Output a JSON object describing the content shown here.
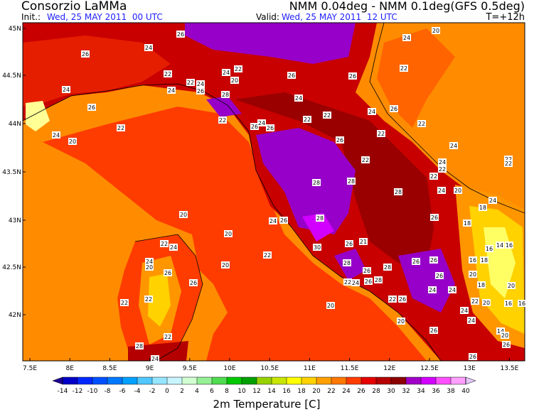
{
  "header": {
    "title": "Consorzio LaMMa",
    "model": "NMM 0.04deg - NMM 0.1deg(GFS 0.5deg)",
    "init_label": "Init.:",
    "init_time": "Wed, 25 MAY 2011  00 UTC",
    "valid_label": "Valid:",
    "valid_time": "Wed, 25 MAY 2011  12 UTC",
    "forecast_step": "T=+12h"
  },
  "map": {
    "lat_labels": [
      "45N",
      "44.5N",
      "44N",
      "43.5N",
      "43N",
      "42.5N",
      "42N"
    ],
    "lon_labels": [
      "7.5E",
      "8E",
      "8.5E",
      "9E",
      "9.5E",
      "10E",
      "10.5E",
      "11E",
      "11.5E",
      "12E",
      "12.5E",
      "13E",
      "13.5E"
    ],
    "values": [
      26,
      24,
      26,
      22,
      24,
      22,
      24,
      24,
      22,
      24,
      26,
      20,
      26,
      26,
      24,
      20,
      22,
      26,
      28,
      24,
      22,
      20,
      24,
      22,
      26,
      24,
      26,
      22,
      22,
      24,
      26,
      26,
      22,
      22,
      24,
      22,
      24,
      22,
      22,
      22,
      22,
      28,
      28,
      28,
      24,
      20,
      24,
      18,
      26,
      18,
      20,
      20,
      24,
      26,
      28,
      22,
      24,
      24,
      20,
      26,
      26,
      20,
      22,
      30,
      26,
      21,
      28,
      26,
      26,
      28,
      26,
      26,
      16,
      14,
      16,
      16,
      18,
      20,
      18,
      20,
      22,
      24,
      26,
      28,
      22,
      26,
      24,
      24,
      22,
      22,
      22,
      20,
      24,
      16,
      16,
      20,
      24,
      20,
      14,
      20,
      26,
      22,
      28,
      26,
      26,
      24
    ]
  },
  "colorbar": {
    "title": "2m Temperature [C]",
    "ticks": [
      -14,
      -12,
      -10,
      -8,
      -6,
      -4,
      -2,
      0,
      2,
      4,
      6,
      8,
      10,
      12,
      14,
      16,
      18,
      20,
      22,
      24,
      26,
      28,
      30,
      32,
      34,
      36,
      38,
      40
    ],
    "colors": [
      "#1e0096",
      "#0000c8",
      "#0028ff",
      "#0050ff",
      "#0078ff",
      "#00a0ff",
      "#50c8ff",
      "#96e6ff",
      "#c8f5ff",
      "#d2ffd2",
      "#96f096",
      "#50dc50",
      "#00c800",
      "#00a000",
      "#96d200",
      "#c8e600",
      "#ffff00",
      "#ffd200",
      "#ffa000",
      "#ff7800",
      "#ff3c00",
      "#e60000",
      "#b40000",
      "#8c0000",
      "#a000c8",
      "#d200ff",
      "#ff50ff",
      "#ffa0ff",
      "#e6c8ff"
    ]
  }
}
